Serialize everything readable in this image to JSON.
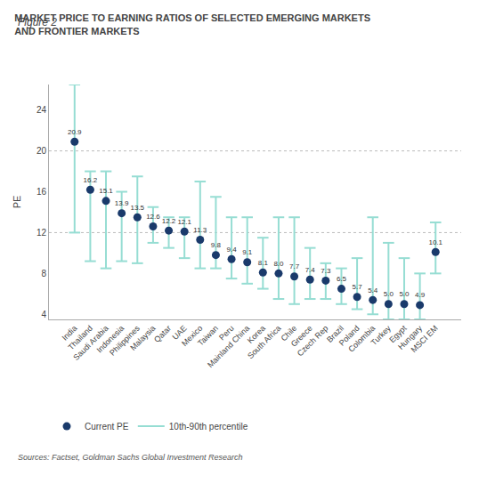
{
  "chart_data": {
    "type": "scatter",
    "figure_label": "Figure 2",
    "title": "MARKET PRICE TO EARNING RATIOS OF SELECTED EMERGING MARKETS\nAND FRONTIER MARKETS",
    "y_label": "PE",
    "source": "Sources: Factset, Goldman Sachs Global Investment Research",
    "categories": [
      "India",
      "Thailand",
      "Saudi Arabia",
      "Indonesia",
      "Philippines",
      "Malaysia",
      "Qatar",
      "UAE",
      "Mexico",
      "Taiwan",
      "Peru",
      "Mainland China",
      "Korea",
      "South Africa",
      "Chile",
      "Greece",
      "Czech Rep",
      "Brazil",
      "Poland",
      "Colombia",
      "Turkey",
      "Egypt",
      "Hungary",
      "MSCI EM"
    ],
    "series": [
      {
        "name": "Current PE",
        "color": "#1a3a6b",
        "marker": "circle",
        "values": [
          20.9,
          16.2,
          15.1,
          13.9,
          13.5,
          12.6,
          12.2,
          12.1,
          11.3,
          9.8,
          9.4,
          9.1,
          8.1,
          8.0,
          7.7,
          7.4,
          7.3,
          6.5,
          5.7,
          5.4,
          5.0,
          5.0,
          4.9,
          10.1
        ],
        "value_labels": [
          "20.9",
          "16.2",
          "15.1",
          "13.9",
          "13.5",
          "12.6",
          "12.2",
          "12.1",
          "11.3",
          "9.8",
          "9.4",
          "9.1",
          "8.1",
          "8.0",
          "7.7",
          "7.4",
          "7.3",
          "6.5",
          "5.7",
          "5.4",
          "5.0",
          "5.0",
          "4.9",
          "10.1"
        ]
      }
    ],
    "error_bars": {
      "name": "10th-90th percentile",
      "color": "#96ddd3",
      "low": [
        12.0,
        9.2,
        8.5,
        9.2,
        9.0,
        11.0,
        10.5,
        9.5,
        8.5,
        8.5,
        7.5,
        7.0,
        6.5,
        5.5,
        5.0,
        5.5,
        5.5,
        5.0,
        4.5,
        4.0,
        3.5,
        3.5,
        3.5,
        8.0
      ],
      "high": [
        26.5,
        18.0,
        18.0,
        16.0,
        17.5,
        14.5,
        13.5,
        13.5,
        17.0,
        15.5,
        13.5,
        13.5,
        11.5,
        13.5,
        13.5,
        10.5,
        9.0,
        8.5,
        9.5,
        13.5,
        11.0,
        9.5,
        8.0,
        13.0
      ]
    },
    "reference_lines": [
      12,
      20
    ],
    "ylim": [
      3.5,
      26.5
    ],
    "yticks": [
      4,
      8,
      12,
      16,
      20,
      24
    ],
    "grid": false,
    "data_labels": true,
    "legend": "bottom"
  }
}
